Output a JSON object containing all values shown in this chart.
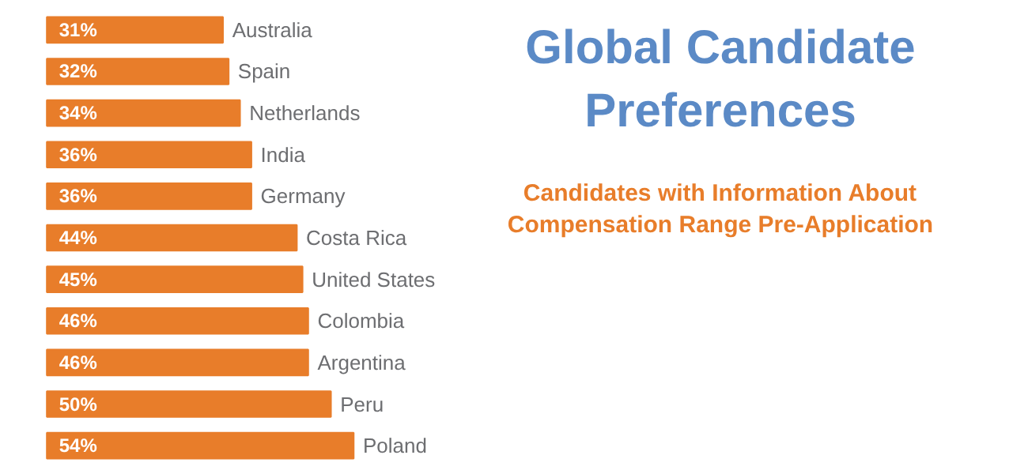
{
  "chart_data": {
    "type": "bar",
    "orientation": "horizontal",
    "title": "Global Candidate\nPreferences",
    "subtitle": "Candidates with Information About\nCompensation Range Pre-Application",
    "categories": [
      "Australia",
      "Spain",
      "Netherlands",
      "India",
      "Germany",
      "Costa Rica",
      "United States",
      "Colombia",
      "Argentina",
      "Peru",
      "Poland"
    ],
    "values": [
      31,
      32,
      34,
      36,
      36,
      44,
      45,
      46,
      46,
      50,
      54
    ],
    "value_labels": [
      "31%",
      "32%",
      "34%",
      "36%",
      "36%",
      "44%",
      "45%",
      "46%",
      "46%",
      "50%",
      "54%"
    ],
    "color": "#e87d2a",
    "grid": false
  }
}
